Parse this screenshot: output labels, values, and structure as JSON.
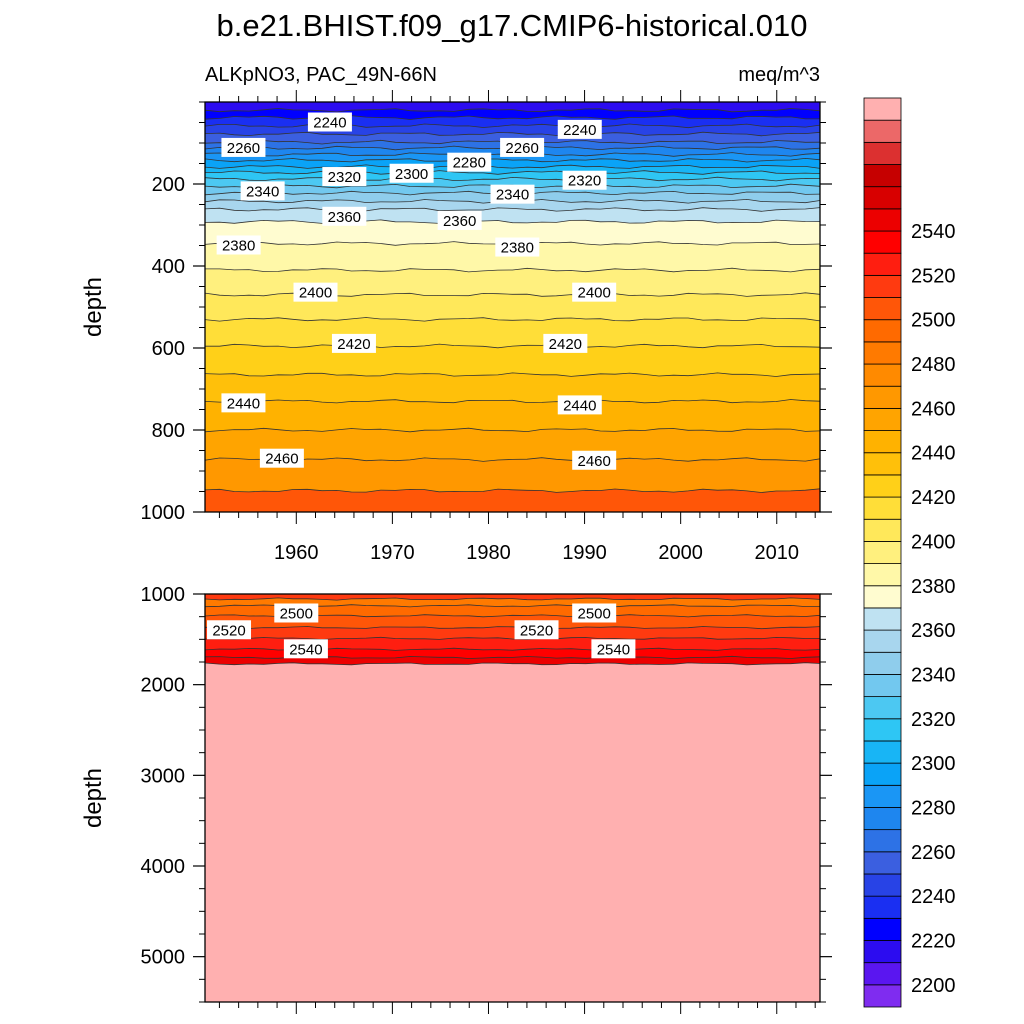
{
  "chart_data": {
    "type": "heatmap",
    "title": "b.e21.BHIST.f09_g17.CMIP6-historical.010",
    "subtitle_left": "ALKpNO3, PAC_49N-66N",
    "subtitle_right": "meq/m^3",
    "ylabel": "depth",
    "x_ticks": [
      "1960",
      "1970",
      "1980",
      "1990",
      "2000",
      "2010"
    ],
    "x_tick_values": [
      1960,
      1970,
      1980,
      1990,
      2000,
      2010
    ],
    "xlim": [
      1950.5,
      2014.5
    ],
    "upper_panel": {
      "ylim": [
        0,
        1000
      ],
      "y_ticks": [
        "200",
        "400",
        "600",
        "800",
        "1000"
      ],
      "y_tick_values": [
        200,
        400,
        600,
        800,
        1000
      ],
      "contours": [
        {
          "value": 2220,
          "depth": 20
        },
        {
          "value": 2230,
          "depth": 38
        },
        {
          "value": 2240,
          "depth": 58
        },
        {
          "value": 2250,
          "depth": 78
        },
        {
          "value": 2260,
          "depth": 98
        },
        {
          "value": 2270,
          "depth": 112
        },
        {
          "value": 2280,
          "depth": 128
        },
        {
          "value": 2290,
          "depth": 142
        },
        {
          "value": 2300,
          "depth": 158
        },
        {
          "value": 2310,
          "depth": 172
        },
        {
          "value": 2320,
          "depth": 188
        },
        {
          "value": 2330,
          "depth": 205
        },
        {
          "value": 2340,
          "depth": 222
        },
        {
          "value": 2350,
          "depth": 242
        },
        {
          "value": 2360,
          "depth": 262
        },
        {
          "value": 2370,
          "depth": 292
        },
        {
          "value": 2380,
          "depth": 345
        },
        {
          "value": 2390,
          "depth": 410
        },
        {
          "value": 2400,
          "depth": 470
        },
        {
          "value": 2410,
          "depth": 530
        },
        {
          "value": 2420,
          "depth": 595
        },
        {
          "value": 2430,
          "depth": 665
        },
        {
          "value": 2440,
          "depth": 730
        },
        {
          "value": 2450,
          "depth": 800
        },
        {
          "value": 2460,
          "depth": 872
        },
        {
          "value": 2470,
          "depth": 948
        }
      ],
      "labels": [
        {
          "text": "2240",
          "x": 1963.5,
          "depth": 50
        },
        {
          "text": "2240",
          "x": 1989.5,
          "depth": 68
        },
        {
          "text": "2260",
          "x": 1954.5,
          "depth": 112
        },
        {
          "text": "2260",
          "x": 1983.5,
          "depth": 112
        },
        {
          "text": "2280",
          "x": 1978,
          "depth": 148
        },
        {
          "text": "2300",
          "x": 1972,
          "depth": 175
        },
        {
          "text": "2320",
          "x": 1965,
          "depth": 183
        },
        {
          "text": "2320",
          "x": 1990,
          "depth": 192
        },
        {
          "text": "2340",
          "x": 1956.5,
          "depth": 218
        },
        {
          "text": "2340",
          "x": 1982.5,
          "depth": 226
        },
        {
          "text": "2360",
          "x": 1965,
          "depth": 280
        },
        {
          "text": "2360",
          "x": 1977,
          "depth": 290
        },
        {
          "text": "2380",
          "x": 1954,
          "depth": 350
        },
        {
          "text": "2380",
          "x": 1983,
          "depth": 355
        },
        {
          "text": "2400",
          "x": 1962,
          "depth": 465
        },
        {
          "text": "2400",
          "x": 1991,
          "depth": 465
        },
        {
          "text": "2420",
          "x": 1966,
          "depth": 590
        },
        {
          "text": "2420",
          "x": 1988,
          "depth": 590
        },
        {
          "text": "2440",
          "x": 1954.5,
          "depth": 735
        },
        {
          "text": "2440",
          "x": 1989.5,
          "depth": 740
        },
        {
          "text": "2460",
          "x": 1958.5,
          "depth": 870
        },
        {
          "text": "2460",
          "x": 1991,
          "depth": 875
        }
      ]
    },
    "lower_panel": {
      "ylim": [
        1000,
        5500
      ],
      "y_ticks": [
        "1000",
        "2000",
        "3000",
        "4000",
        "5000"
      ],
      "y_tick_values": [
        1000,
        2000,
        3000,
        4000,
        5000
      ],
      "contours": [
        {
          "value": 2480,
          "depth": 1055
        },
        {
          "value": 2490,
          "depth": 1130
        },
        {
          "value": 2500,
          "depth": 1240
        },
        {
          "value": 2510,
          "depth": 1370
        },
        {
          "value": 2520,
          "depth": 1490
        },
        {
          "value": 2530,
          "depth": 1610
        },
        {
          "value": 2540,
          "depth": 1700
        },
        {
          "value": 2550,
          "depth": 1770
        }
      ],
      "labels": [
        {
          "text": "2500",
          "x": 1960,
          "depth": 1215
        },
        {
          "text": "2500",
          "x": 1991,
          "depth": 1215
        },
        {
          "text": "2520",
          "x": 1953,
          "depth": 1400
        },
        {
          "text": "2520",
          "x": 1985,
          "depth": 1400
        },
        {
          "text": "2540",
          "x": 1961,
          "depth": 1610
        },
        {
          "text": "2540",
          "x": 1993,
          "depth": 1610
        }
      ]
    },
    "colorbar": {
      "levels": [
        2200,
        2210,
        2220,
        2230,
        2240,
        2250,
        2260,
        2270,
        2280,
        2290,
        2300,
        2310,
        2320,
        2330,
        2340,
        2350,
        2360,
        2370,
        2380,
        2390,
        2400,
        2410,
        2420,
        2430,
        2440,
        2450,
        2460,
        2470,
        2480,
        2490,
        2500,
        2510,
        2520,
        2530,
        2540,
        2550
      ],
      "tick_labels": [
        "2200",
        "2220",
        "2240",
        "2260",
        "2280",
        "2300",
        "2320",
        "2340",
        "2360",
        "2380",
        "2400",
        "2420",
        "2440",
        "2460",
        "2480",
        "2500",
        "2520",
        "2540"
      ],
      "colors": [
        "#7f2cf0",
        "#5a16f0",
        "#2c0cf0",
        "#0000ff",
        "#1a2ff2",
        "#2843e6",
        "#3b5fe0",
        "#2d72e6",
        "#1e86ef",
        "#1a96f5",
        "#0aa3f7",
        "#18b5f5",
        "#2ec6f4",
        "#4cc8f2",
        "#72c8ef",
        "#8fcdec",
        "#a8d6ee",
        "#bfe2f2",
        "#fffcd0",
        "#fff8a8",
        "#fff07e",
        "#ffe85a",
        "#ffde38",
        "#ffd018",
        "#ffc00a",
        "#ffb200",
        "#ffa400",
        "#ff9800",
        "#ff8a00",
        "#ff7a00",
        "#ff6a00",
        "#ff5608",
        "#ff3a10",
        "#ff1e10",
        "#ff0000",
        "#ec0000",
        "#d80000",
        "#c60000",
        "#dc3030",
        "#ec6868",
        "#ffb0b0"
      ]
    }
  }
}
